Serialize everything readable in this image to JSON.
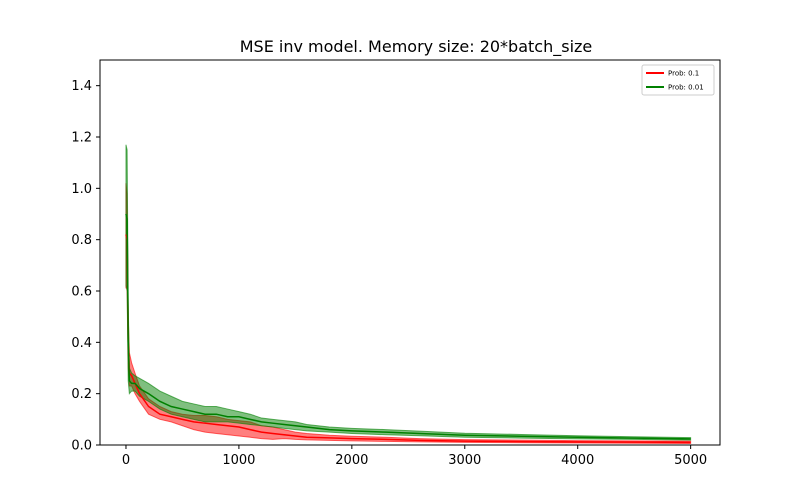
{
  "chart_data": {
    "type": "line",
    "title": "MSE inv model. Memory size: 20*batch_size",
    "xlabel": "",
    "ylabel": "",
    "xlim": [
      -230,
      5260
    ],
    "ylim": [
      0,
      1.5
    ],
    "xticks": [
      0,
      1000,
      2000,
      3000,
      4000,
      5000
    ],
    "xtick_labels": [
      "0",
      "1000",
      "2000",
      "3000",
      "4000",
      "5000"
    ],
    "yticks": [
      0.0,
      0.2,
      0.4,
      0.6,
      0.8,
      1.0,
      1.2,
      1.4
    ],
    "ytick_labels": [
      "0.0",
      "0.2",
      "0.4",
      "0.6",
      "0.8",
      "1.0",
      "1.2",
      "1.4"
    ],
    "grid": false,
    "legend": "top-right",
    "series": [
      {
        "name": "Prob: 0.1",
        "color": "#ff0000",
        "x": [
          0,
          10,
          20,
          30,
          50,
          80,
          120,
          200,
          300,
          400,
          500,
          600,
          700,
          800,
          900,
          1000,
          1100,
          1200,
          1300,
          1400,
          1500,
          1600,
          1800,
          2000,
          2300,
          2600,
          3000,
          3500,
          4000,
          4500,
          5000
        ],
        "mean": [
          0.82,
          0.8,
          0.4,
          0.28,
          0.27,
          0.24,
          0.2,
          0.15,
          0.12,
          0.11,
          0.1,
          0.09,
          0.085,
          0.08,
          0.075,
          0.07,
          0.06,
          0.05,
          0.045,
          0.04,
          0.035,
          0.03,
          0.028,
          0.025,
          0.022,
          0.018,
          0.015,
          0.013,
          0.012,
          0.011,
          0.01
        ],
        "lower": [
          0.61,
          0.62,
          0.3,
          0.23,
          0.23,
          0.2,
          0.17,
          0.12,
          0.1,
          0.09,
          0.075,
          0.06,
          0.05,
          0.045,
          0.04,
          0.035,
          0.03,
          0.025,
          0.022,
          0.025,
          0.022,
          0.02,
          0.018,
          0.016,
          0.014,
          0.012,
          0.01,
          0.009,
          0.008,
          0.007,
          0.006
        ],
        "upper": [
          1.02,
          0.98,
          0.5,
          0.36,
          0.32,
          0.28,
          0.23,
          0.18,
          0.15,
          0.13,
          0.12,
          0.115,
          0.115,
          0.11,
          0.1,
          0.095,
          0.09,
          0.075,
          0.07,
          0.06,
          0.05,
          0.045,
          0.038,
          0.034,
          0.03,
          0.025,
          0.021,
          0.019,
          0.017,
          0.016,
          0.015
        ]
      },
      {
        "name": "Prob: 0.01",
        "color": "#008000",
        "x": [
          0,
          10,
          20,
          30,
          50,
          80,
          120,
          200,
          300,
          400,
          500,
          600,
          700,
          800,
          900,
          1000,
          1100,
          1200,
          1300,
          1400,
          1500,
          1600,
          1800,
          2000,
          2300,
          2600,
          3000,
          3500,
          4000,
          4500,
          5000
        ],
        "mean": [
          0.9,
          0.88,
          0.4,
          0.25,
          0.24,
          0.24,
          0.22,
          0.2,
          0.17,
          0.15,
          0.14,
          0.13,
          0.12,
          0.12,
          0.11,
          0.11,
          0.1,
          0.09,
          0.085,
          0.08,
          0.075,
          0.07,
          0.06,
          0.055,
          0.05,
          0.045,
          0.038,
          0.034,
          0.03,
          0.027,
          0.024
        ],
        "lower": [
          0.62,
          0.6,
          0.25,
          0.2,
          0.21,
          0.21,
          0.19,
          0.17,
          0.14,
          0.12,
          0.11,
          0.1,
          0.09,
          0.09,
          0.09,
          0.085,
          0.08,
          0.075,
          0.07,
          0.065,
          0.06,
          0.055,
          0.05,
          0.045,
          0.04,
          0.036,
          0.03,
          0.027,
          0.024,
          0.022,
          0.019
        ],
        "upper": [
          1.17,
          1.15,
          0.55,
          0.3,
          0.28,
          0.27,
          0.26,
          0.24,
          0.21,
          0.19,
          0.17,
          0.16,
          0.15,
          0.15,
          0.14,
          0.13,
          0.12,
          0.105,
          0.1,
          0.095,
          0.09,
          0.08,
          0.07,
          0.065,
          0.06,
          0.054,
          0.046,
          0.041,
          0.036,
          0.032,
          0.029
        ]
      }
    ]
  }
}
